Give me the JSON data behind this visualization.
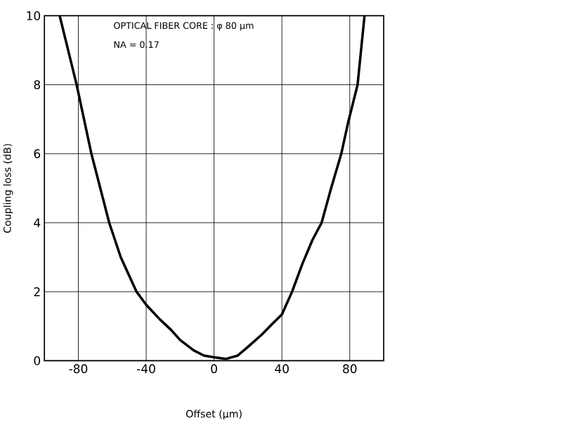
{
  "chart_data": {
    "type": "line",
    "xlabel": "Offset (μm)",
    "ylabel": "Coupling loss (dB)",
    "annotations": [
      "OPTICAL FIBER CORE : φ 80 μm",
      "NA = 0.17"
    ],
    "x": [
      -91,
      -81,
      -72.3,
      -61.8,
      -55,
      -45.7,
      -40,
      -32,
      -25.5,
      -20,
      -12,
      -6,
      0,
      6.9,
      14,
      20,
      28,
      34,
      40,
      46,
      52,
      58,
      63.4,
      69,
      75,
      79,
      84.6,
      88.7
    ],
    "values": [
      10,
      8,
      6,
      4,
      3,
      2,
      1.62,
      1.2,
      0.9,
      0.6,
      0.3,
      0.15,
      0.1,
      0.05,
      0.15,
      0.4,
      0.75,
      1.05,
      1.34,
      2,
      2.8,
      3.5,
      4,
      5,
      6,
      6.9,
      8,
      10
    ],
    "color": "#000000",
    "xlim": [
      -100,
      100
    ],
    "ylim": [
      0,
      10
    ],
    "xticks": [
      -80,
      -40,
      0,
      40,
      80
    ],
    "yticks": [
      0,
      2,
      4,
      6,
      8,
      10
    ],
    "grid": true,
    "line_style": "solid",
    "marker": "none"
  }
}
